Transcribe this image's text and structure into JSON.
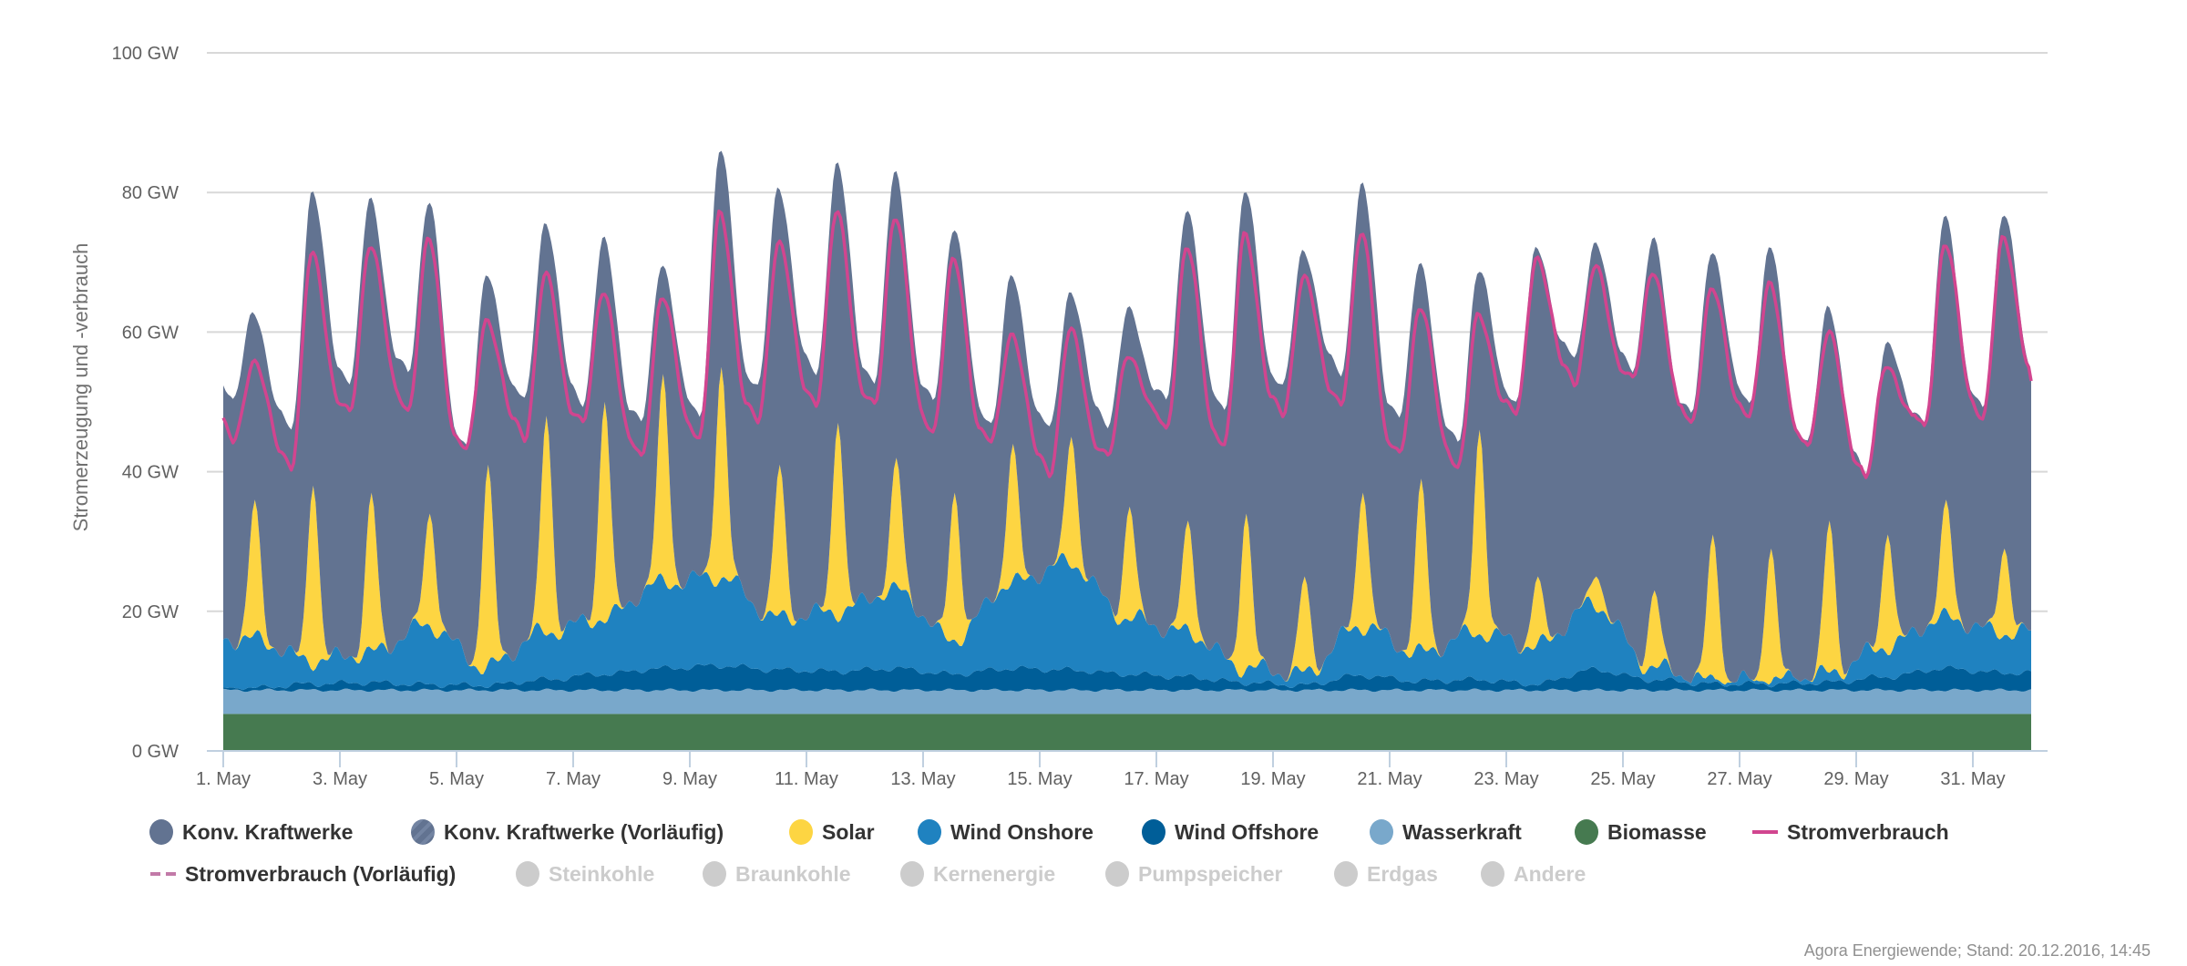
{
  "chart_data": {
    "type": "area",
    "stacked": true,
    "ylabel": "Stromerzeugung und -verbrauch",
    "ylim": [
      0,
      100
    ],
    "yunit": "GW",
    "yticks": [
      "0 GW",
      "20 GW",
      "40 GW",
      "60 GW",
      "80 GW",
      "100 GW"
    ],
    "ytick_values": [
      0,
      20,
      40,
      60,
      80,
      100
    ],
    "xlim_days": [
      1,
      32
    ],
    "xticks": [
      "1. May",
      "3. May",
      "5. May",
      "7. May",
      "9. May",
      "11. May",
      "13. May",
      "15. May",
      "17. May",
      "19. May",
      "21. May",
      "23. May",
      "25. May",
      "27. May",
      "29. May",
      "31. May"
    ],
    "xtick_days": [
      1,
      3,
      5,
      7,
      9,
      11,
      13,
      15,
      17,
      19,
      21,
      23,
      25,
      27,
      29,
      31
    ],
    "grid": true,
    "days": [
      1,
      2,
      3,
      4,
      5,
      6,
      7,
      8,
      9,
      10,
      11,
      12,
      13,
      14,
      15,
      16,
      17,
      18,
      19,
      20,
      21,
      22,
      23,
      24,
      25,
      26,
      27,
      28,
      29,
      30,
      31
    ],
    "series": [
      {
        "name": "Biomasse",
        "color": "#467a50",
        "kind": "area",
        "level_gw": 5.3
      },
      {
        "name": "Wasserkraft",
        "color": "#79a8cb",
        "kind": "area",
        "level_gw": 3.4
      },
      {
        "name": "Wind Offshore",
        "color": "#005e98",
        "kind": "area",
        "daily_top_gw": [
          9.0,
          9.6,
          9.8,
          9.5,
          9.4,
          10.2,
          11.0,
          11.8,
          12.2,
          11.6,
          11.4,
          11.8,
          11.0,
          11.8,
          11.6,
          11.0,
          10.6,
          9.8,
          9.4,
          10.8,
          10.0,
          10.2,
          9.6,
          11.6,
          10.2,
          9.6,
          9.6,
          9.8,
          10.6,
          11.8,
          11.2
        ]
      },
      {
        "name": "Wind Onshore",
        "color": "#1f82c0",
        "kind": "area",
        "daily_top_gw": [
          16,
          13,
          14,
          18,
          12,
          17,
          19,
          24,
          25,
          19,
          20,
          23,
          16,
          24,
          27,
          19,
          17,
          12,
          11,
          18,
          14,
          17,
          15,
          21,
          12,
          10,
          10,
          11,
          15,
          19,
          17
        ]
      },
      {
        "name": "Solar",
        "color": "#fdd542",
        "kind": "area",
        "daily_peak_top_gw": [
          36,
          38,
          37,
          34,
          41,
          48,
          50,
          54,
          55,
          41,
          47,
          42,
          37,
          44,
          45,
          35,
          33,
          34,
          25,
          37,
          39,
          46,
          25,
          25,
          23,
          31,
          29,
          33,
          31,
          36,
          29
        ]
      },
      {
        "name": "Konv. Kraftwerke",
        "color": "#627391",
        "kind": "area",
        "daily_peak_top_gw": [
          63,
          80,
          79,
          79,
          68,
          76,
          73,
          70,
          86,
          81,
          84,
          83,
          75,
          68,
          66,
          63,
          78,
          80,
          72,
          81,
          70,
          69,
          72,
          73,
          73,
          72,
          72,
          64,
          58,
          77,
          77
        ],
        "daily_trough_top_gw": [
          50,
          46,
          53,
          54,
          44,
          50,
          50,
          47,
          48,
          52,
          54,
          53,
          50,
          47,
          46,
          47,
          50,
          49,
          52,
          54,
          48,
          44,
          50,
          56,
          55,
          48,
          50,
          44,
          40,
          47,
          49
        ],
        "end_gw": 53
      },
      {
        "name": "Stromverbrauch",
        "color": "#d1458f",
        "kind": "line",
        "daily_peak_gw": [
          56,
          71,
          73,
          73,
          62,
          68,
          66,
          65,
          77,
          73,
          77,
          77,
          70,
          60,
          60,
          57,
          72,
          74,
          68,
          74,
          64,
          62,
          71,
          69,
          69,
          66,
          67,
          60,
          55,
          73,
          73
        ],
        "daily_trough_gw": [
          44,
          41,
          48,
          49,
          43,
          45,
          47,
          42,
          45,
          47,
          50,
          49,
          46,
          44,
          40,
          42,
          46,
          44,
          48,
          50,
          42,
          41,
          48,
          53,
          53,
          47,
          48,
          44,
          40,
          46,
          48
        ],
        "end_gw": 53
      }
    ]
  },
  "legend": {
    "items": [
      {
        "label": "Konv. Kraftwerke",
        "color": "#627391",
        "active": true
      },
      {
        "label": "Konv. Kraftwerke (Vorläufig)",
        "color": "#627391",
        "active": true
      },
      {
        "label": "Solar",
        "color": "#fdd542",
        "active": true
      },
      {
        "label": "Wind Onshore",
        "color": "#1f82c0",
        "active": true
      },
      {
        "label": "Wind Offshore",
        "color": "#005e98",
        "active": true
      },
      {
        "label": "Wasserkraft",
        "color": "#79a8cb",
        "active": true
      },
      {
        "label": "Biomasse",
        "color": "#467a50",
        "active": true
      },
      {
        "label": "Stromverbrauch",
        "color": "#d1458f",
        "active": true
      },
      {
        "label": "Stromverbrauch (Vorläufig)",
        "color": "#c27aa8",
        "active": true
      },
      {
        "label": "Steinkohle",
        "color": "#cccccc",
        "active": false
      },
      {
        "label": "Braunkohle",
        "color": "#cccccc",
        "active": false
      },
      {
        "label": "Kernenergie",
        "color": "#cccccc",
        "active": false
      },
      {
        "label": "Pumpspeicher",
        "color": "#cccccc",
        "active": false
      },
      {
        "label": "Erdgas",
        "color": "#cccccc",
        "active": false
      },
      {
        "label": "Andere",
        "color": "#cccccc",
        "active": false
      }
    ]
  },
  "credits": "Agora Energiewende; Stand: 20.12.2016, 14:45"
}
